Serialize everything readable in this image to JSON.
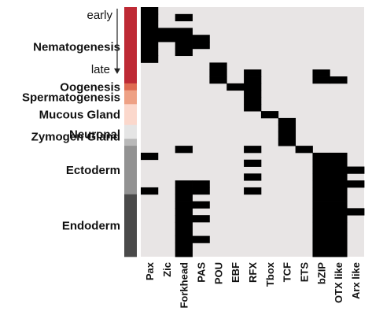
{
  "chart_data": {
    "type": "heatmap",
    "columns": [
      "Pax",
      "Zic",
      "Forkhead",
      "PAS",
      "POU",
      "EBF",
      "RFX",
      "Tbox",
      "TCF",
      "ETS",
      "bZIP",
      "OTX like",
      "Arx like"
    ],
    "cell_colors": {
      "on": "#000000",
      "off": "#e8e5e5"
    },
    "time_axis": {
      "start": "early",
      "end": "late"
    },
    "cell_types": [
      {
        "name": "Nematogenesis",
        "color": "#be2a35"
      },
      {
        "name": "Oogenesis",
        "color": "#de6b52"
      },
      {
        "name": "Spermatogenesis",
        "color": "#eea185"
      },
      {
        "name": "Mucous Gland",
        "color": "#fbd8cc"
      },
      {
        "name": "Zymogen Gland",
        "color": "#e5e5e5"
      },
      {
        "name": "Neuronal",
        "color": "#b8b8b8"
      },
      {
        "name": "Ectoderm",
        "color": "#929292"
      },
      {
        "name": "Endoderm",
        "color": "#4a4a4a"
      }
    ],
    "rows": [
      {
        "type": 0,
        "values": [
          1,
          0,
          0,
          0,
          0,
          0,
          0,
          0,
          0,
          0,
          0,
          0,
          0
        ]
      },
      {
        "type": 0,
        "values": [
          1,
          0,
          1,
          0,
          0,
          0,
          0,
          0,
          0,
          0,
          0,
          0,
          0
        ]
      },
      {
        "type": 0,
        "values": [
          1,
          0,
          0,
          0,
          0,
          0,
          0,
          0,
          0,
          0,
          0,
          0,
          0
        ]
      },
      {
        "type": 0,
        "values": [
          1,
          1,
          1,
          0,
          0,
          0,
          0,
          0,
          0,
          0,
          0,
          0,
          0
        ]
      },
      {
        "type": 0,
        "values": [
          1,
          1,
          1,
          1,
          0,
          0,
          0,
          0,
          0,
          0,
          0,
          0,
          0
        ]
      },
      {
        "type": 0,
        "values": [
          1,
          0,
          1,
          1,
          0,
          0,
          0,
          0,
          0,
          0,
          0,
          0,
          0
        ]
      },
      {
        "type": 0,
        "values": [
          1,
          0,
          1,
          0,
          0,
          0,
          0,
          0,
          0,
          0,
          0,
          0,
          0
        ]
      },
      {
        "type": 0,
        "values": [
          1,
          0,
          0,
          0,
          0,
          0,
          0,
          0,
          0,
          0,
          0,
          0,
          0
        ]
      },
      {
        "type": 0,
        "values": [
          0,
          0,
          0,
          0,
          1,
          0,
          0,
          0,
          0,
          0,
          0,
          0,
          0
        ]
      },
      {
        "type": 0,
        "values": [
          0,
          0,
          0,
          0,
          1,
          0,
          1,
          0,
          0,
          0,
          1,
          0,
          0
        ]
      },
      {
        "type": 0,
        "values": [
          0,
          0,
          0,
          0,
          1,
          0,
          1,
          0,
          0,
          0,
          1,
          1,
          0
        ]
      },
      {
        "type": 1,
        "values": [
          0,
          0,
          0,
          0,
          0,
          1,
          1,
          0,
          0,
          0,
          0,
          0,
          0
        ]
      },
      {
        "type": 2,
        "values": [
          0,
          0,
          0,
          0,
          0,
          0,
          1,
          0,
          0,
          0,
          0,
          0,
          0
        ]
      },
      {
        "type": 2,
        "values": [
          0,
          0,
          0,
          0,
          0,
          0,
          1,
          0,
          0,
          0,
          0,
          0,
          0
        ]
      },
      {
        "type": 3,
        "values": [
          0,
          0,
          0,
          0,
          0,
          0,
          1,
          0,
          0,
          0,
          0,
          0,
          0
        ]
      },
      {
        "type": 3,
        "values": [
          0,
          0,
          0,
          0,
          0,
          0,
          0,
          1,
          0,
          0,
          0,
          0,
          0
        ]
      },
      {
        "type": 3,
        "values": [
          0,
          0,
          0,
          0,
          0,
          0,
          0,
          0,
          1,
          0,
          0,
          0,
          0
        ]
      },
      {
        "type": 4,
        "values": [
          0,
          0,
          0,
          0,
          0,
          0,
          0,
          0,
          1,
          0,
          0,
          0,
          0
        ]
      },
      {
        "type": 4,
        "values": [
          0,
          0,
          0,
          0,
          0,
          0,
          0,
          0,
          1,
          0,
          0,
          0,
          0
        ]
      },
      {
        "type": 5,
        "values": [
          0,
          0,
          0,
          0,
          0,
          0,
          0,
          0,
          1,
          0,
          0,
          0,
          0
        ]
      },
      {
        "type": 6,
        "values": [
          0,
          0,
          1,
          0,
          0,
          0,
          1,
          0,
          0,
          1,
          0,
          0,
          0
        ]
      },
      {
        "type": 6,
        "values": [
          1,
          0,
          0,
          0,
          0,
          0,
          0,
          0,
          0,
          0,
          1,
          1,
          0
        ]
      },
      {
        "type": 6,
        "values": [
          0,
          0,
          0,
          0,
          0,
          0,
          1,
          0,
          0,
          0,
          1,
          1,
          0
        ]
      },
      {
        "type": 6,
        "values": [
          0,
          0,
          0,
          0,
          0,
          0,
          0,
          0,
          0,
          0,
          1,
          1,
          1
        ]
      },
      {
        "type": 6,
        "values": [
          0,
          0,
          0,
          0,
          0,
          0,
          1,
          0,
          0,
          0,
          1,
          1,
          0
        ]
      },
      {
        "type": 6,
        "values": [
          0,
          0,
          1,
          1,
          0,
          0,
          0,
          0,
          0,
          0,
          1,
          1,
          1
        ]
      },
      {
        "type": 6,
        "values": [
          1,
          0,
          1,
          1,
          0,
          0,
          1,
          0,
          0,
          0,
          1,
          1,
          0
        ]
      },
      {
        "type": 7,
        "values": [
          0,
          0,
          1,
          0,
          0,
          0,
          0,
          0,
          0,
          0,
          1,
          1,
          0
        ]
      },
      {
        "type": 7,
        "values": [
          0,
          0,
          1,
          1,
          0,
          0,
          0,
          0,
          0,
          0,
          1,
          1,
          0
        ]
      },
      {
        "type": 7,
        "values": [
          0,
          0,
          1,
          0,
          0,
          0,
          0,
          0,
          0,
          0,
          1,
          1,
          1
        ]
      },
      {
        "type": 7,
        "values": [
          0,
          0,
          1,
          1,
          0,
          0,
          0,
          0,
          0,
          0,
          1,
          1,
          0
        ]
      },
      {
        "type": 7,
        "values": [
          0,
          0,
          1,
          0,
          0,
          0,
          0,
          0,
          0,
          0,
          1,
          1,
          0
        ]
      },
      {
        "type": 7,
        "values": [
          0,
          0,
          1,
          0,
          0,
          0,
          0,
          0,
          0,
          0,
          1,
          1,
          0
        ]
      },
      {
        "type": 7,
        "values": [
          0,
          0,
          1,
          1,
          0,
          0,
          0,
          0,
          0,
          0,
          1,
          1,
          0
        ]
      },
      {
        "type": 7,
        "values": [
          0,
          0,
          1,
          0,
          0,
          0,
          0,
          0,
          0,
          0,
          1,
          1,
          0
        ]
      },
      {
        "type": 7,
        "values": [
          0,
          0,
          1,
          0,
          0,
          0,
          0,
          0,
          0,
          0,
          1,
          1,
          0
        ]
      }
    ]
  }
}
